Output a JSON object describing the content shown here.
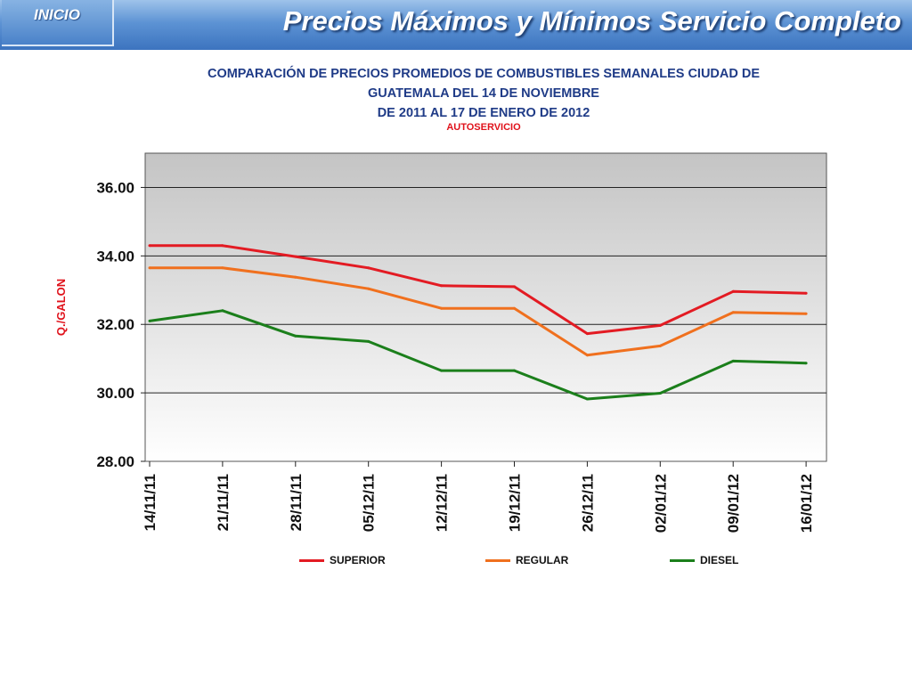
{
  "header": {
    "inicio_label": "INICIO",
    "title": "Precios Máximos y Mínimos Servicio Completo"
  },
  "chart_data": {
    "type": "line",
    "title_lines": [
      "COMPARACIÓN DE PRECIOS PROMEDIOS DE COMBUSTIBLES SEMANALES CIUDAD DE",
      "GUATEMALA DEL 14 DE NOVIEMBRE",
      "DE 2011 AL 17 DE ENERO DE 2012"
    ],
    "subtitle": "AUTOSERVICIO",
    "ylabel": "Q./GALON",
    "xlabel": "",
    "categories": [
      "14/11/11",
      "21/11/11",
      "28/11/11",
      "05/12/11",
      "12/12/11",
      "19/12/11",
      "26/12/11",
      "02/01/12",
      "09/01/12",
      "16/01/12"
    ],
    "ylim": [
      28,
      37
    ],
    "yticks": [
      28,
      30,
      32,
      34,
      36
    ],
    "ytick_labels": [
      "28.00",
      "30.00",
      "32.00",
      "34.00",
      "36.00"
    ],
    "grid": true,
    "legend_position": "bottom",
    "series": [
      {
        "name": "SUPERIOR",
        "color": "#e31b23",
        "values": [
          34.3,
          34.3,
          33.98,
          33.65,
          33.13,
          33.1,
          31.73,
          31.97,
          32.96,
          32.91
        ]
      },
      {
        "name": "REGULAR",
        "color": "#f0701e",
        "values": [
          33.65,
          33.65,
          33.38,
          33.04,
          32.47,
          32.47,
          31.1,
          31.37,
          32.35,
          32.31
        ]
      },
      {
        "name": "DIESEL",
        "color": "#1b7f1b",
        "values": [
          32.1,
          32.4,
          31.66,
          31.5,
          30.65,
          30.65,
          29.82,
          29.99,
          30.93,
          30.87
        ]
      }
    ]
  }
}
